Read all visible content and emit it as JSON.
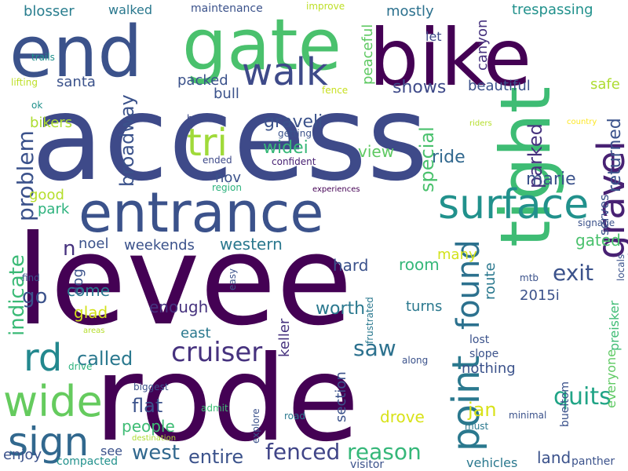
{
  "words": [
    {
      "text": "access",
      "color": "#3e4a89"
    },
    {
      "text": "levee",
      "color": "#440154"
    },
    {
      "text": "rode",
      "color": "#440154"
    },
    {
      "text": "bike",
      "color": "#440154"
    },
    {
      "text": "end",
      "color": "#3b528b"
    },
    {
      "text": "gate",
      "color": "#4ac16d"
    },
    {
      "text": "entrance",
      "color": "#3b528b"
    },
    {
      "text": "tight",
      "color": "#3ebc74"
    },
    {
      "text": "surface",
      "color": "#21918c"
    },
    {
      "text": "point",
      "color": "#2a788e"
    },
    {
      "text": "found",
      "color": "#2c718e"
    },
    {
      "text": "gravel",
      "color": "#482173"
    },
    {
      "text": "walk",
      "color": "#3e4a89"
    },
    {
      "text": "tri",
      "color": "#a0da39"
    },
    {
      "text": "wide",
      "color": "#65cb5e"
    },
    {
      "text": "sign",
      "color": "#31688e"
    },
    {
      "text": "rd",
      "color": "#23888e"
    },
    {
      "text": "cruiser",
      "color": "#46327e"
    },
    {
      "text": "problem",
      "color": "#3b528b"
    },
    {
      "text": "broadway",
      "color": "#3b528b"
    },
    {
      "text": "indicate",
      "color": "#3aba76"
    },
    {
      "text": "parked",
      "color": "#46327e"
    },
    {
      "text": "returned",
      "color": "#3b528b"
    },
    {
      "text": "special",
      "color": "#4ac16d"
    },
    {
      "text": "called",
      "color": "#2a788e"
    },
    {
      "text": "fenced",
      "color": "#404588"
    },
    {
      "text": "reason",
      "color": "#35b779"
    },
    {
      "text": "western",
      "color": "#2a788e"
    },
    {
      "text": "quits",
      "color": "#20a486"
    },
    {
      "text": "saw",
      "color": "#2c718e"
    },
    {
      "text": "west",
      "color": "#31688e"
    },
    {
      "text": "entire",
      "color": "#3b528b"
    },
    {
      "text": "exit",
      "color": "#3b528b"
    },
    {
      "text": "graveli",
      "color": "#3b528b"
    },
    {
      "text": "widei",
      "color": "#37b878"
    },
    {
      "text": "go",
      "color": "#3b528b"
    },
    {
      "text": "n",
      "color": "#46327e"
    },
    {
      "text": "flat",
      "color": "#3b528b"
    },
    {
      "text": "people",
      "color": "#3ebc74"
    },
    {
      "text": "jan",
      "color": "#d8e219"
    },
    {
      "text": "ride",
      "color": "#31688e"
    },
    {
      "text": "marie",
      "color": "#3b528b"
    },
    {
      "text": "shows",
      "color": "#3e4a89"
    },
    {
      "text": "beautiful",
      "color": "#3b528b"
    },
    {
      "text": "mostly",
      "color": "#2c718e"
    },
    {
      "text": "trespassing",
      "color": "#21918c"
    },
    {
      "text": "walked",
      "color": "#2a788e"
    },
    {
      "text": "blosser",
      "color": "#287d8e"
    },
    {
      "text": "maintenance",
      "color": "#3b528b"
    },
    {
      "text": "improve",
      "color": "#bddf26"
    },
    {
      "text": "santa",
      "color": "#3b528b"
    },
    {
      "text": "packed",
      "color": "#3b528b"
    },
    {
      "text": "bull",
      "color": "#3b528b"
    },
    {
      "text": "peaceful",
      "color": "#5ec962"
    },
    {
      "text": "let",
      "color": "#3e4a89"
    },
    {
      "text": "canyon",
      "color": "#46327e"
    },
    {
      "text": "safe",
      "color": "#addc30"
    },
    {
      "text": "trails",
      "color": "#21918c"
    },
    {
      "text": "lifting",
      "color": "#bddf26"
    },
    {
      "text": "ok",
      "color": "#21918c"
    },
    {
      "text": "bikers",
      "color": "#addc30"
    },
    {
      "text": "fence",
      "color": "#c8e020"
    },
    {
      "text": "heads",
      "color": "#3e4a89"
    },
    {
      "text": "getting",
      "color": "#3b528b"
    },
    {
      "text": "confident",
      "color": "#482173"
    },
    {
      "text": "ended",
      "color": "#3e4a89"
    },
    {
      "text": "region",
      "color": "#2db27d"
    },
    {
      "text": "view",
      "color": "#5ec962"
    },
    {
      "text": "good",
      "color": "#b5de2b"
    },
    {
      "text": "park",
      "color": "#2db27d"
    },
    {
      "text": "nov",
      "color": "#3b528b"
    },
    {
      "text": "experiences",
      "color": "#440154"
    },
    {
      "text": "riders",
      "color": "#b5de2b"
    },
    {
      "text": "country",
      "color": "#fde725"
    },
    {
      "text": "serves",
      "color": "#3b528b"
    },
    {
      "text": "signage",
      "color": "#3b528b"
    },
    {
      "text": "locals",
      "color": "#3b528b"
    },
    {
      "text": "gated",
      "color": "#4ac16d"
    },
    {
      "text": "noel",
      "color": "#3b528b"
    },
    {
      "text": "weekends",
      "color": "#3b528b"
    },
    {
      "text": "hard",
      "color": "#3b528b"
    },
    {
      "text": "many",
      "color": "#d2e21b"
    },
    {
      "text": "room",
      "color": "#35b779"
    },
    {
      "text": "dog",
      "color": "#3b528b"
    },
    {
      "text": "find",
      "color": "#3b528b"
    },
    {
      "text": "easy",
      "color": "#3b528b"
    },
    {
      "text": "mtb",
      "color": "#3b528b"
    },
    {
      "text": "preisker",
      "color": "#3ebc74"
    },
    {
      "text": "route",
      "color": "#2a788e"
    },
    {
      "text": "come",
      "color": "#2a788e"
    },
    {
      "text": "2015i",
      "color": "#3b528b"
    },
    {
      "text": "enough",
      "color": "#46327e"
    },
    {
      "text": "glad",
      "color": "#d2e21b"
    },
    {
      "text": "areas",
      "color": "#b5de2b"
    },
    {
      "text": "frustrated",
      "color": "#2a788e"
    },
    {
      "text": "worth",
      "color": "#2a788e"
    },
    {
      "text": "turns",
      "color": "#2a788e"
    },
    {
      "text": "everyone",
      "color": "#5ec962"
    },
    {
      "text": "east",
      "color": "#2a788e"
    },
    {
      "text": "keller",
      "color": "#46327e"
    },
    {
      "text": "lost",
      "color": "#3b528b"
    },
    {
      "text": "slope",
      "color": "#3b528b"
    },
    {
      "text": "nothing",
      "color": "#3b528b"
    },
    {
      "text": "bueltom",
      "color": "#3b528b"
    },
    {
      "text": "along",
      "color": "#3b528b"
    },
    {
      "text": "drive",
      "color": "#2db27d"
    },
    {
      "text": "biggest",
      "color": "#3b528b"
    },
    {
      "text": "section",
      "color": "#3b528b"
    },
    {
      "text": "admit",
      "color": "#3ebc74"
    },
    {
      "text": "explore",
      "color": "#3b528b"
    },
    {
      "text": "road",
      "color": "#2a788e"
    },
    {
      "text": "drove",
      "color": "#d8e219"
    },
    {
      "text": "minimal",
      "color": "#3b528b"
    },
    {
      "text": "destination",
      "color": "#addc30"
    },
    {
      "text": "must",
      "color": "#2a788e"
    },
    {
      "text": "see",
      "color": "#3b528b"
    },
    {
      "text": "enjoy",
      "color": "#3b528b"
    },
    {
      "text": "compacted",
      "color": "#21918c"
    },
    {
      "text": "visitor",
      "color": "#3b528b"
    },
    {
      "text": "vehicles",
      "color": "#2a788e"
    },
    {
      "text": "land",
      "color": "#3b528b"
    },
    {
      "text": "panther",
      "color": "#3b528b"
    }
  ]
}
